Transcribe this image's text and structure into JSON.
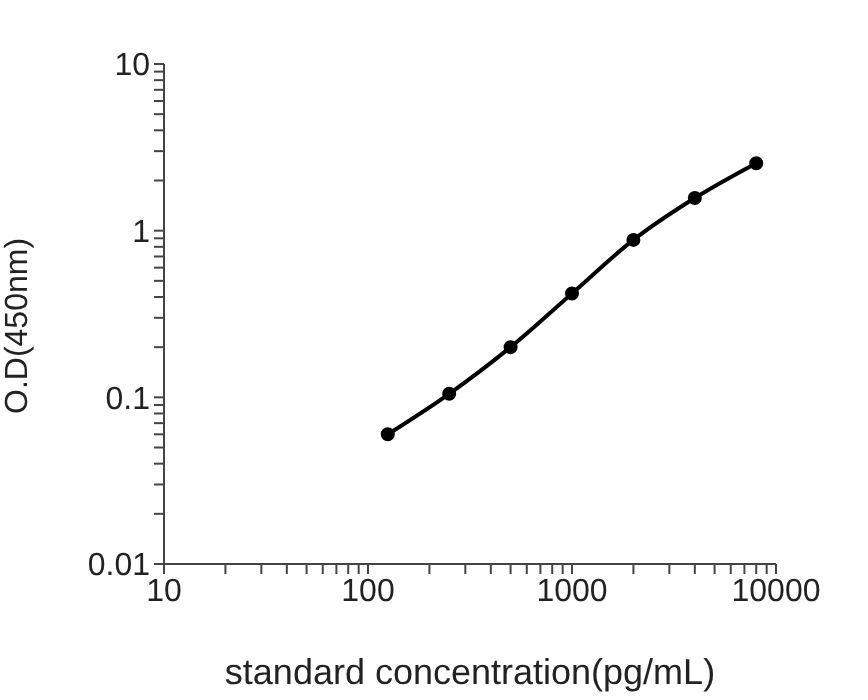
{
  "chart_data": {
    "type": "line",
    "xlabel": "standard concentration(pg/mL)",
    "ylabel": "O.D(450nm)",
    "log": "xy",
    "x": [
      125,
      250,
      500,
      1000,
      2000,
      4000,
      8000
    ],
    "series": [
      {
        "color": "#000000",
        "values": [
          0.06,
          0.105,
          0.2,
          0.42,
          0.88,
          1.57,
          2.54
        ]
      }
    ],
    "xlim": [
      10,
      10000
    ],
    "ylim": [
      0.01,
      10
    ],
    "xticks": [
      10,
      {
        "value": 20,
        "label": null
      },
      {
        "value": 30,
        "label": null
      },
      {
        "value": 40,
        "label": null
      },
      {
        "value": 50,
        "label": null
      },
      {
        "value": 60,
        "label": null
      },
      {
        "value": 70,
        "label": null
      },
      {
        "value": 80,
        "label": null
      },
      {
        "value": 90,
        "label": null
      },
      100,
      {
        "value": 200,
        "label": null
      },
      {
        "value": 300,
        "label": null
      },
      {
        "value": 400,
        "label": null
      },
      {
        "value": 500,
        "label": null
      },
      {
        "value": 600,
        "label": null
      },
      {
        "value": 700,
        "label": null
      },
      {
        "value": 800,
        "label": null
      },
      {
        "value": 900,
        "label": null
      },
      1000,
      {
        "value": 2000,
        "label": null
      },
      {
        "value": 3000,
        "label": null
      },
      {
        "value": 4000,
        "label": null
      },
      {
        "value": 5000,
        "label": null
      },
      {
        "value": 6000,
        "label": null
      },
      {
        "value": 7000,
        "label": null
      },
      {
        "value": 8000,
        "label": null
      },
      {
        "value": 9000,
        "label": null
      },
      10000
    ],
    "yticks": [
      0.01,
      {
        "value": 0.02,
        "label": null
      },
      {
        "value": 0.03,
        "label": null
      },
      {
        "value": 0.04,
        "label": null
      },
      {
        "value": 0.05,
        "label": null
      },
      {
        "value": 0.06,
        "label": null
      },
      {
        "value": 0.07,
        "label": null
      },
      {
        "value": 0.08,
        "label": null
      },
      {
        "value": 0.09,
        "label": null
      },
      0.1,
      {
        "value": 0.2,
        "label": null
      },
      {
        "value": 0.3,
        "label": null
      },
      {
        "value": 0.4,
        "label": null
      },
      {
        "value": 0.5,
        "label": null
      },
      {
        "value": 0.6,
        "label": null
      },
      {
        "value": 0.7,
        "label": null
      },
      {
        "value": 0.8,
        "label": null
      },
      {
        "value": 0.9,
        "label": null
      },
      1,
      {
        "value": 2,
        "label": null
      },
      {
        "value": 3,
        "label": null
      },
      {
        "value": 4,
        "label": null
      },
      {
        "value": 5,
        "label": null
      },
      {
        "value": 6,
        "label": null
      },
      {
        "value": 7,
        "label": null
      },
      {
        "value": 8,
        "label": null
      },
      {
        "value": 9,
        "label": null
      },
      10
    ],
    "grid": false,
    "legend": false,
    "marker": "circle",
    "line_style": "solid"
  }
}
